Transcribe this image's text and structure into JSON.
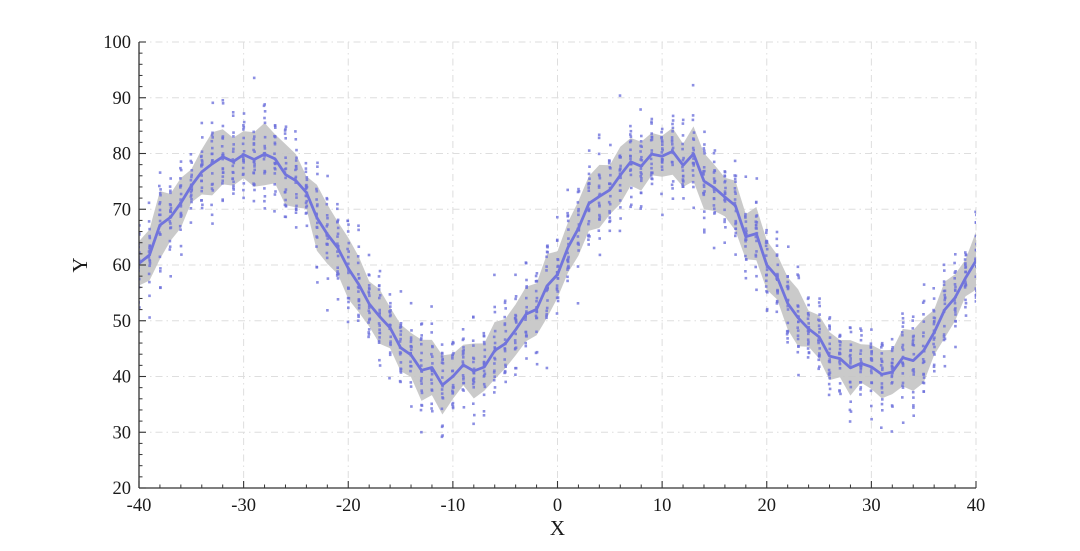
{
  "chart_data": {
    "type": "scatter",
    "subtype": "scatter-with-mean-line-and-std-band",
    "title": "",
    "xlabel": "X",
    "ylabel": "Y",
    "xlim": [
      -40,
      40
    ],
    "ylim": [
      20,
      100
    ],
    "x_major_ticks": [
      -40,
      -30,
      -20,
      -10,
      0,
      10,
      20,
      30,
      40
    ],
    "y_major_ticks": [
      20,
      30,
      40,
      50,
      60,
      70,
      80,
      90,
      100
    ],
    "minor_tick_step": 2,
    "grid": {
      "on": true,
      "style": "dash-dot"
    },
    "legend": "none",
    "x_start": -40,
    "x_step": 1,
    "mean_values": [
      60,
      63.13,
      66.18,
      69.08,
      71.76,
      74.14,
      76.18,
      77.82,
      79.02,
      79.75,
      80,
      79.75,
      79.02,
      77.82,
      76.18,
      74.14,
      71.76,
      69.08,
      66.18,
      63.13,
      60,
      56.87,
      53.82,
      50.92,
      48.24,
      45.86,
      43.82,
      42.18,
      40.98,
      40.25,
      40,
      40.25,
      40.98,
      42.18,
      43.82,
      45.86,
      48.24,
      50.92,
      53.82,
      56.87,
      60,
      63.13,
      66.18,
      69.08,
      71.76,
      74.14,
      76.18,
      77.82,
      79.02,
      79.75,
      80,
      79.75,
      79.02,
      77.82,
      76.18,
      74.14,
      71.76,
      69.08,
      66.18,
      63.13,
      60,
      56.87,
      53.82,
      50.92,
      48.24,
      45.86,
      43.82,
      42.18,
      40.98,
      40.25,
      40,
      40.25,
      40.98,
      42.18,
      43.82,
      45.86,
      48.24,
      50.92,
      53.82,
      56.87,
      60
    ],
    "mean_formula": {
      "offset": 60,
      "amplitude": 20,
      "period": 40
    },
    "band_rule": "empirical mean plus/minus 1 std per x column",
    "scatter": {
      "points_per_x": 20,
      "std": 4.5,
      "seed": 20,
      "marker": "square",
      "marker_px": 2.6,
      "x_jitter": 0.12
    },
    "colors": {
      "line": "#7174DC",
      "points": "#6B6FDB",
      "band": "#C4C4C4",
      "grid": "#DEDEDE",
      "axis": "#333333",
      "text": "#1A1A1A"
    }
  }
}
